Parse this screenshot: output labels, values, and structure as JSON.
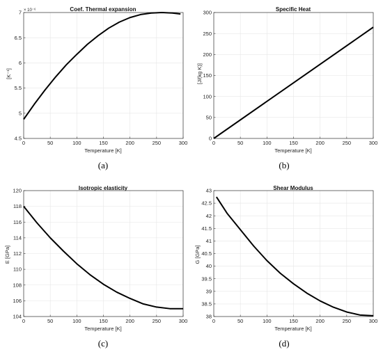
{
  "chart_data": [
    {
      "type": "line",
      "title": "Coef. Thermal expansion",
      "xlabel": "Temperature [K]",
      "ylabel": "[K⁻¹]",
      "y_multiplier_label": "× 10⁻⁶",
      "caption": "(a)",
      "xlim": [
        0,
        300
      ],
      "ylim": [
        4.5,
        7
      ],
      "xticks": [
        0,
        50,
        100,
        150,
        200,
        250,
        300
      ],
      "yticks": [
        4.5,
        5,
        5.5,
        6,
        6.5,
        7
      ],
      "grid": true,
      "series": [
        {
          "color": "#000000",
          "x": [
            0,
            20,
            40,
            60,
            80,
            100,
            120,
            140,
            160,
            180,
            200,
            220,
            240,
            260,
            280,
            295
          ],
          "y": [
            4.88,
            5.18,
            5.46,
            5.72,
            5.96,
            6.17,
            6.37,
            6.54,
            6.69,
            6.81,
            6.9,
            6.96,
            6.99,
            7.0,
            6.99,
            6.97
          ]
        }
      ]
    },
    {
      "type": "line",
      "title": "Specific Heat",
      "xlabel": "Temperature [K]",
      "ylabel": "[J/(kg K)]",
      "caption": "(b)",
      "xlim": [
        0,
        300
      ],
      "ylim": [
        0,
        300
      ],
      "xticks": [
        0,
        50,
        100,
        150,
        200,
        250,
        300
      ],
      "yticks": [
        0,
        50,
        100,
        150,
        200,
        250,
        300
      ],
      "grid": true,
      "series": [
        {
          "color": "#000000",
          "x": [
            0,
            300
          ],
          "y": [
            0,
            265
          ]
        }
      ]
    },
    {
      "type": "line",
      "title": "Isotropic elasticity",
      "xlabel": "Temperature [K]",
      "ylabel": "E [GPa]",
      "caption": "(c)",
      "xlim": [
        0,
        300
      ],
      "ylim": [
        104,
        120
      ],
      "xticks": [
        0,
        50,
        100,
        150,
        200,
        250,
        300
      ],
      "yticks": [
        104,
        106,
        108,
        110,
        112,
        114,
        116,
        118,
        120
      ],
      "grid": true,
      "series": [
        {
          "color": "#000000",
          "x": [
            0,
            25,
            50,
            75,
            100,
            125,
            150,
            175,
            200,
            225,
            250,
            275,
            300
          ],
          "y": [
            118.0,
            115.9,
            114.0,
            112.3,
            110.7,
            109.3,
            108.1,
            107.1,
            106.3,
            105.6,
            105.2,
            105.0,
            105.0
          ]
        }
      ]
    },
    {
      "type": "line",
      "title": "Shear Modulus",
      "xlabel": "Temperature [K]",
      "ylabel": "G [GPa]",
      "caption": "(d)",
      "xlim": [
        0,
        300
      ],
      "ylim": [
        38,
        43
      ],
      "xticks": [
        0,
        50,
        100,
        150,
        200,
        250,
        300
      ],
      "yticks": [
        38,
        38.5,
        39,
        39.5,
        40,
        40.5,
        41,
        41.5,
        42,
        42.5,
        43
      ],
      "grid": true,
      "series": [
        {
          "color": "#000000",
          "x": [
            5,
            25,
            50,
            75,
            100,
            125,
            150,
            175,
            200,
            225,
            250,
            275,
            300
          ],
          "y": [
            42.75,
            42.1,
            41.45,
            40.8,
            40.22,
            39.72,
            39.3,
            38.93,
            38.62,
            38.37,
            38.18,
            38.06,
            38.03
          ]
        }
      ]
    }
  ]
}
